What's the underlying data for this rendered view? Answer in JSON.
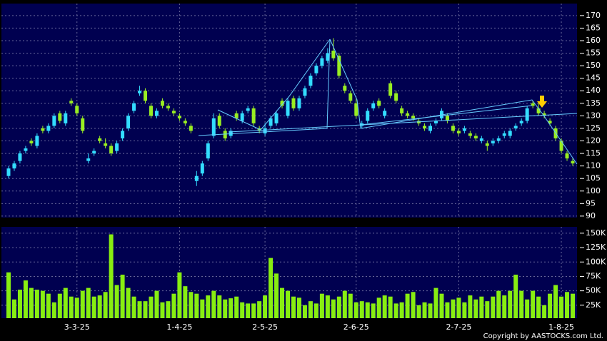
{
  "chart_data": {
    "type": "candlestick",
    "categories": [
      null,
      null,
      null,
      null,
      null,
      null,
      null,
      null,
      null,
      null,
      null,
      null,
      "3-3-25",
      null,
      null,
      null,
      null,
      null,
      null,
      null,
      null,
      null,
      null,
      null,
      null,
      null,
      null,
      null,
      null,
      null,
      "1-4-25",
      null,
      null,
      null,
      null,
      null,
      null,
      null,
      null,
      null,
      null,
      null,
      null,
      null,
      null,
      "2-5-25",
      null,
      null,
      null,
      null,
      null,
      null,
      null,
      null,
      null,
      null,
      null,
      null,
      null,
      null,
      null,
      "2-6-25",
      null,
      null,
      null,
      null,
      null,
      null,
      null,
      null,
      null,
      null,
      null,
      null,
      null,
      null,
      null,
      null,
      null,
      "2-7-25",
      null,
      null,
      null,
      null,
      null,
      null,
      null,
      null,
      null,
      null,
      null,
      null,
      null,
      null,
      null,
      null,
      null,
      "1-8-25",
      null,
      null
    ],
    "open": [
      106,
      109,
      112,
      116,
      120,
      118,
      125,
      124,
      126,
      131,
      127,
      136,
      134,
      129,
      112,
      115,
      121,
      119,
      118,
      116,
      121,
      125,
      132,
      139,
      140,
      134,
      130,
      136,
      134,
      132,
      130,
      128,
      126,
      104,
      107,
      113,
      122,
      130,
      124,
      122,
      131,
      128,
      132,
      133,
      125,
      123,
      126,
      127,
      136,
      130,
      137,
      133,
      138,
      142,
      147,
      150,
      152,
      156,
      154,
      142,
      139,
      135,
      126,
      128,
      133,
      136,
      130,
      143,
      139,
      133,
      131,
      130,
      128,
      126,
      124,
      127,
      129,
      130,
      126,
      124,
      124,
      123,
      122,
      120,
      119,
      119,
      120,
      122,
      122,
      125,
      127,
      128,
      135,
      133,
      131,
      128,
      125,
      120,
      115,
      112
    ],
    "high": [
      110,
      112,
      116,
      118,
      121,
      123,
      126,
      127,
      131,
      132,
      132,
      137,
      135,
      130,
      115,
      117,
      122,
      121,
      119,
      120,
      125,
      131,
      136,
      142,
      141,
      135,
      133,
      137,
      135,
      133,
      131,
      129,
      127,
      108,
      112,
      120,
      131,
      131,
      125,
      125,
      132,
      132,
      134,
      134,
      126,
      127,
      130,
      132,
      137,
      137,
      138,
      138,
      142,
      147,
      151,
      154,
      157,
      161,
      155,
      143,
      140,
      137,
      128,
      133,
      136,
      137,
      133,
      144,
      140,
      134,
      132,
      131,
      129,
      127,
      127,
      129,
      133,
      131,
      127,
      125,
      126,
      124,
      123,
      122,
      120,
      121,
      122,
      124,
      125,
      127,
      129,
      134,
      136,
      135,
      132,
      129,
      126,
      121,
      116,
      113
    ],
    "low": [
      105,
      108,
      111,
      115,
      118,
      117,
      123,
      123,
      125,
      127,
      126,
      134,
      130,
      123,
      111,
      114,
      119,
      117,
      114,
      115,
      120,
      124,
      131,
      138,
      135,
      129,
      129,
      133,
      132,
      130,
      128,
      126,
      123,
      102,
      106,
      112,
      121,
      125,
      120,
      121,
      128,
      127,
      131,
      126,
      123,
      122,
      125,
      126,
      133,
      129,
      132,
      132,
      137,
      141,
      146,
      149,
      151,
      152,
      145,
      139,
      135,
      129,
      125,
      127,
      132,
      133,
      129,
      137,
      135,
      130,
      129,
      128,
      126,
      124,
      123,
      126,
      128,
      127,
      123,
      122,
      123,
      121,
      120,
      119,
      116,
      118,
      119,
      121,
      121,
      124,
      126,
      127,
      133,
      130,
      129,
      126,
      120,
      115,
      112,
      110
    ],
    "close": [
      109,
      111,
      115,
      117,
      119,
      122,
      124,
      126,
      130,
      128,
      131,
      135,
      131,
      124,
      113,
      116,
      120,
      118,
      115,
      119,
      124,
      130,
      135,
      140,
      136,
      130,
      132,
      134,
      133,
      131,
      129,
      127,
      124,
      106,
      111,
      119,
      129,
      126,
      121,
      124,
      129,
      131,
      133,
      127,
      124,
      125,
      129,
      131,
      134,
      136,
      133,
      137,
      141,
      146,
      150,
      153,
      155,
      153,
      146,
      140,
      136,
      130,
      127,
      132,
      135,
      134,
      132,
      138,
      136,
      131,
      130,
      129,
      127,
      125,
      126,
      128,
      132,
      128,
      124,
      123,
      125,
      122,
      121,
      121,
      118,
      120,
      121,
      123,
      124,
      126,
      128,
      133,
      134,
      131,
      130,
      127,
      121,
      116,
      113,
      111
    ],
    "volume": [
      82000,
      35000,
      52000,
      68000,
      55000,
      52000,
      50000,
      45000,
      30000,
      45000,
      55000,
      40000,
      38000,
      50000,
      55000,
      40000,
      42000,
      48000,
      148000,
      60000,
      78000,
      55000,
      40000,
      32000,
      32000,
      40000,
      50000,
      30000,
      32000,
      45000,
      82000,
      58000,
      48000,
      45000,
      35000,
      42000,
      50000,
      42000,
      35000,
      37000,
      40000,
      30000,
      28000,
      28000,
      32000,
      42000,
      107000,
      80000,
      55000,
      50000,
      40000,
      38000,
      25000,
      32000,
      28000,
      45000,
      42000,
      35000,
      40000,
      50000,
      45000,
      30000,
      32000,
      30000,
      28000,
      38000,
      42000,
      40000,
      28000,
      30000,
      45000,
      48000,
      25000,
      30000,
      28000,
      55000,
      45000,
      30000,
      35000,
      38000,
      30000,
      42000,
      35000,
      40000,
      32000,
      40000,
      50000,
      42000,
      50000,
      78000,
      50000,
      35000,
      50000,
      40000,
      25000,
      45000,
      60000,
      40000,
      48000,
      45000
    ],
    "up_color": "#33ddff",
    "down_color": "#99ee22",
    "volume_color": "#88ee11",
    "ylim": [
      89.4,
      174.8
    ],
    "yticks": [
      90,
      95,
      100,
      105,
      110,
      115,
      120,
      125,
      130,
      135,
      140,
      145,
      150,
      155,
      160,
      165,
      170
    ],
    "volume_ylim": [
      2500,
      161000
    ],
    "volume_ticks": [
      {
        "value": 25000,
        "label": "25K"
      },
      {
        "value": 50000,
        "label": "50K"
      },
      {
        "value": 75000,
        "label": "75K"
      },
      {
        "value": 100000,
        "label": "100K"
      },
      {
        "value": 125000,
        "label": "125K"
      },
      {
        "value": 150000,
        "label": "150K"
      }
    ],
    "grid": true,
    "copyright": "Copyright by AASTOCKS.com Ltd."
  }
}
